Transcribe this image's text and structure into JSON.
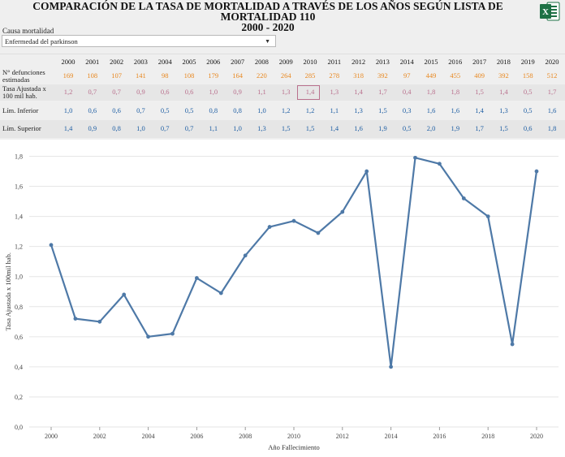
{
  "title_line1": "COMPARACIÓN DE LA TASA DE MORTALIDAD A TRAVÉS DE LOS AÑOS SEGÚN LISTA DE MORTALIDAD 110",
  "title_line2": "2000 - 2020",
  "filter": {
    "label": "Causa mortalidad",
    "selected": "Enfermedad del parkinson"
  },
  "icons": {
    "export": "excel-icon",
    "dropdown": "chevron-down-icon"
  },
  "colors": {
    "defunciones": "#e8871e",
    "tasa": "#b9708d",
    "limites": "#1f5fa4",
    "line": "#4e79a7"
  },
  "table": {
    "years": [
      "2000",
      "2001",
      "2002",
      "2003",
      "2004",
      "2005",
      "2006",
      "2007",
      "2008",
      "2009",
      "2010",
      "2011",
      "2012",
      "2013",
      "2014",
      "2015",
      "2016",
      "2017",
      "2018",
      "2019",
      "2020"
    ],
    "rows": [
      {
        "label_1": "N° defunciones",
        "label_2": "estimadas",
        "values": [
          "169",
          "108",
          "107",
          "141",
          "98",
          "108",
          "179",
          "164",
          "220",
          "264",
          "285",
          "278",
          "318",
          "392",
          "97",
          "449",
          "455",
          "409",
          "392",
          "158",
          "512"
        ]
      },
      {
        "label_1": "Tasa Ajustada x",
        "label_2": "100 mil hab.",
        "values": [
          "1,2",
          "0,7",
          "0,7",
          "0,9",
          "0,6",
          "0,6",
          "1,0",
          "0,9",
          "1,1",
          "1,3",
          "1,4",
          "1,3",
          "1,4",
          "1,7",
          "0,4",
          "1,8",
          "1,8",
          "1,5",
          "1,4",
          "0,5",
          "1,7"
        ]
      },
      {
        "label_1": "Lím. Inferior",
        "label_2": "",
        "values": [
          "1,0",
          "0,6",
          "0,6",
          "0,7",
          "0,5",
          "0,5",
          "0,8",
          "0,8",
          "1,0",
          "1,2",
          "1,2",
          "1,1",
          "1,3",
          "1,5",
          "0,3",
          "1,6",
          "1,6",
          "1,4",
          "1,3",
          "0,5",
          "1,6"
        ]
      },
      {
        "label_1": "Lím. Superior",
        "label_2": "",
        "values": [
          "1,4",
          "0,9",
          "0,8",
          "1,0",
          "0,7",
          "0,7",
          "1,1",
          "1,0",
          "1,3",
          "1,5",
          "1,5",
          "1,4",
          "1,6",
          "1,9",
          "0,5",
          "2,0",
          "1,9",
          "1,7",
          "1,5",
          "0,6",
          "1,8"
        ]
      }
    ]
  },
  "chart_data": {
    "type": "line",
    "xlabel": "Año Fallecimiento",
    "ylabel": "Tasa Ajustada x 100mil hab.",
    "x": [
      2000,
      2001,
      2002,
      2003,
      2004,
      2005,
      2006,
      2007,
      2008,
      2009,
      2010,
      2011,
      2012,
      2013,
      2014,
      2015,
      2016,
      2017,
      2018,
      2019,
      2020
    ],
    "y": [
      1.21,
      0.72,
      0.7,
      0.88,
      0.6,
      0.62,
      0.99,
      0.89,
      1.14,
      1.33,
      1.37,
      1.29,
      1.43,
      1.7,
      0.4,
      1.79,
      1.75,
      1.52,
      1.4,
      0.55,
      1.7
    ],
    "ylim": [
      0,
      1.9
    ],
    "xticks": [
      "2000",
      "2002",
      "2004",
      "2006",
      "2008",
      "2010",
      "2012",
      "2014",
      "2016",
      "2018",
      "2020"
    ],
    "yticks": [
      "0,0",
      "0,2",
      "0,4",
      "0,6",
      "0,8",
      "1,0",
      "1,2",
      "1,4",
      "1,6",
      "1,8"
    ],
    "grid": "horizontal"
  }
}
